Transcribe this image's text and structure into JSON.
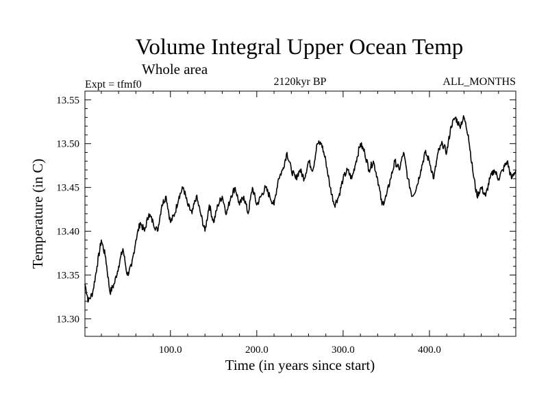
{
  "chart_data": {
    "type": "line",
    "title": "Volume Integral Upper Ocean Temp",
    "subtitle": "Whole area",
    "experiment": "Expt = tfmf0",
    "period": "2120kyr BP",
    "months": "ALL_MONTHS",
    "xlabel": "Time (in years since start)",
    "ylabel": "Temperature (in C)",
    "xlim": [
      1,
      500
    ],
    "ylim": [
      13.28,
      13.56
    ],
    "x_ticks": [
      100,
      200,
      300,
      400
    ],
    "x_tick_labels": [
      "100.0",
      "200.0",
      "300.0",
      "400.0"
    ],
    "y_ticks": [
      13.3,
      13.35,
      13.4,
      13.45,
      13.5,
      13.55
    ],
    "y_tick_labels": [
      "13.30",
      "13.35",
      "13.40",
      "13.45",
      "13.50",
      "13.55"
    ],
    "series": [
      {
        "name": "Temperature",
        "x": [
          1,
          5,
          10,
          15,
          20,
          25,
          30,
          35,
          40,
          45,
          50,
          55,
          60,
          65,
          70,
          75,
          80,
          85,
          90,
          95,
          100,
          105,
          110,
          115,
          120,
          125,
          130,
          135,
          140,
          145,
          150,
          155,
          160,
          165,
          170,
          175,
          180,
          185,
          190,
          195,
          200,
          205,
          210,
          215,
          220,
          225,
          230,
          235,
          240,
          245,
          250,
          255,
          260,
          265,
          270,
          275,
          280,
          285,
          290,
          295,
          300,
          305,
          310,
          315,
          320,
          325,
          330,
          335,
          340,
          345,
          350,
          355,
          360,
          365,
          370,
          375,
          380,
          385,
          390,
          395,
          400,
          405,
          410,
          415,
          420,
          425,
          430,
          435,
          440,
          445,
          450,
          455,
          460,
          465,
          470,
          475,
          480,
          485,
          490,
          495,
          500
        ],
        "values": [
          13.34,
          13.32,
          13.33,
          13.36,
          13.39,
          13.37,
          13.33,
          13.34,
          13.36,
          13.38,
          13.35,
          13.36,
          13.39,
          13.41,
          13.4,
          13.42,
          13.41,
          13.4,
          13.43,
          13.44,
          13.41,
          13.42,
          13.44,
          13.45,
          13.43,
          13.42,
          13.44,
          13.42,
          13.4,
          13.43,
          13.41,
          13.43,
          13.44,
          13.42,
          13.44,
          13.45,
          13.43,
          13.44,
          13.42,
          13.45,
          13.43,
          13.44,
          13.45,
          13.44,
          13.43,
          13.46,
          13.47,
          13.49,
          13.47,
          13.46,
          13.47,
          13.46,
          13.48,
          13.47,
          13.5,
          13.5,
          13.48,
          13.45,
          13.43,
          13.44,
          13.46,
          13.47,
          13.46,
          13.48,
          13.5,
          13.49,
          13.47,
          13.48,
          13.46,
          13.43,
          13.44,
          13.46,
          13.48,
          13.47,
          13.49,
          13.46,
          13.44,
          13.45,
          13.47,
          13.49,
          13.48,
          13.46,
          13.49,
          13.5,
          13.49,
          13.52,
          13.53,
          13.52,
          13.53,
          13.51,
          13.47,
          13.44,
          13.45,
          13.44,
          13.46,
          13.47,
          13.46,
          13.47,
          13.48,
          13.46,
          13.47
        ]
      }
    ],
    "grid": false
  }
}
